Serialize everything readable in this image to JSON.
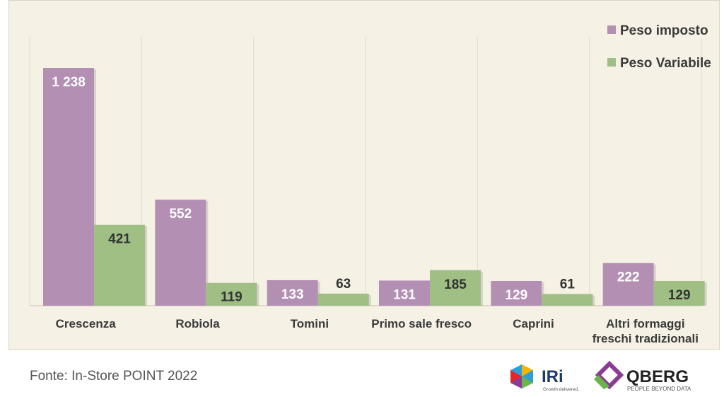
{
  "chart_data": {
    "type": "bar",
    "title": "",
    "xlabel": "",
    "ylabel": "",
    "ylim": [
      0,
      1300
    ],
    "grid": false,
    "legend_position": "top-right",
    "categories": [
      [
        "Crescenza"
      ],
      [
        "Robiola"
      ],
      [
        "Tomini"
      ],
      [
        "Primo sale fresco"
      ],
      [
        "Caprini"
      ],
      [
        "Altri formaggi",
        "freschi tradizionali"
      ]
    ],
    "series": [
      {
        "name": "Peso imposto",
        "color": "#b48fb4",
        "values": [
          1238,
          552,
          133,
          131,
          129,
          222
        ],
        "labels": [
          "1 238",
          "552",
          "133",
          "131",
          "129",
          "222"
        ]
      },
      {
        "name": "Peso Variabile",
        "color": "#9fbf85",
        "values": [
          421,
          119,
          63,
          185,
          61,
          129
        ],
        "labels": [
          "421",
          "119",
          "63",
          "185",
          "61",
          "129"
        ]
      }
    ]
  },
  "footer": {
    "source": "Fonte: In-Store POINT 2022"
  },
  "logos": {
    "iri_name": "IRi",
    "iri_tagline": "Growth delivered.",
    "qberg_name": "QBERG",
    "qberg_tagline": "PEOPLE BEYOND DATA"
  }
}
